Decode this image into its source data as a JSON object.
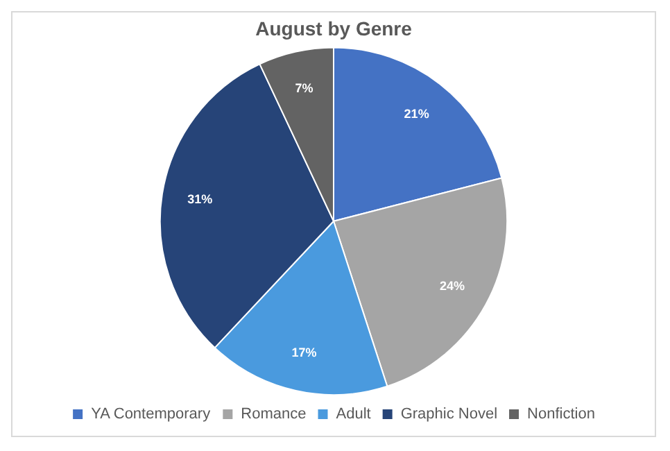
{
  "chart_data": {
    "type": "pie",
    "title": "August by Genre",
    "categories": [
      "YA Contemporary",
      "Romance",
      "Adult",
      "Graphic Novel",
      "Nonfiction"
    ],
    "values": [
      21,
      24,
      17,
      31,
      7
    ],
    "colors": [
      "#4472c4",
      "#a5a5a5",
      "#4a9ade",
      "#264478",
      "#636363"
    ],
    "value_labels": [
      "21%",
      "24%",
      "17%",
      "31%",
      "7%"
    ],
    "legend": "bottom"
  }
}
